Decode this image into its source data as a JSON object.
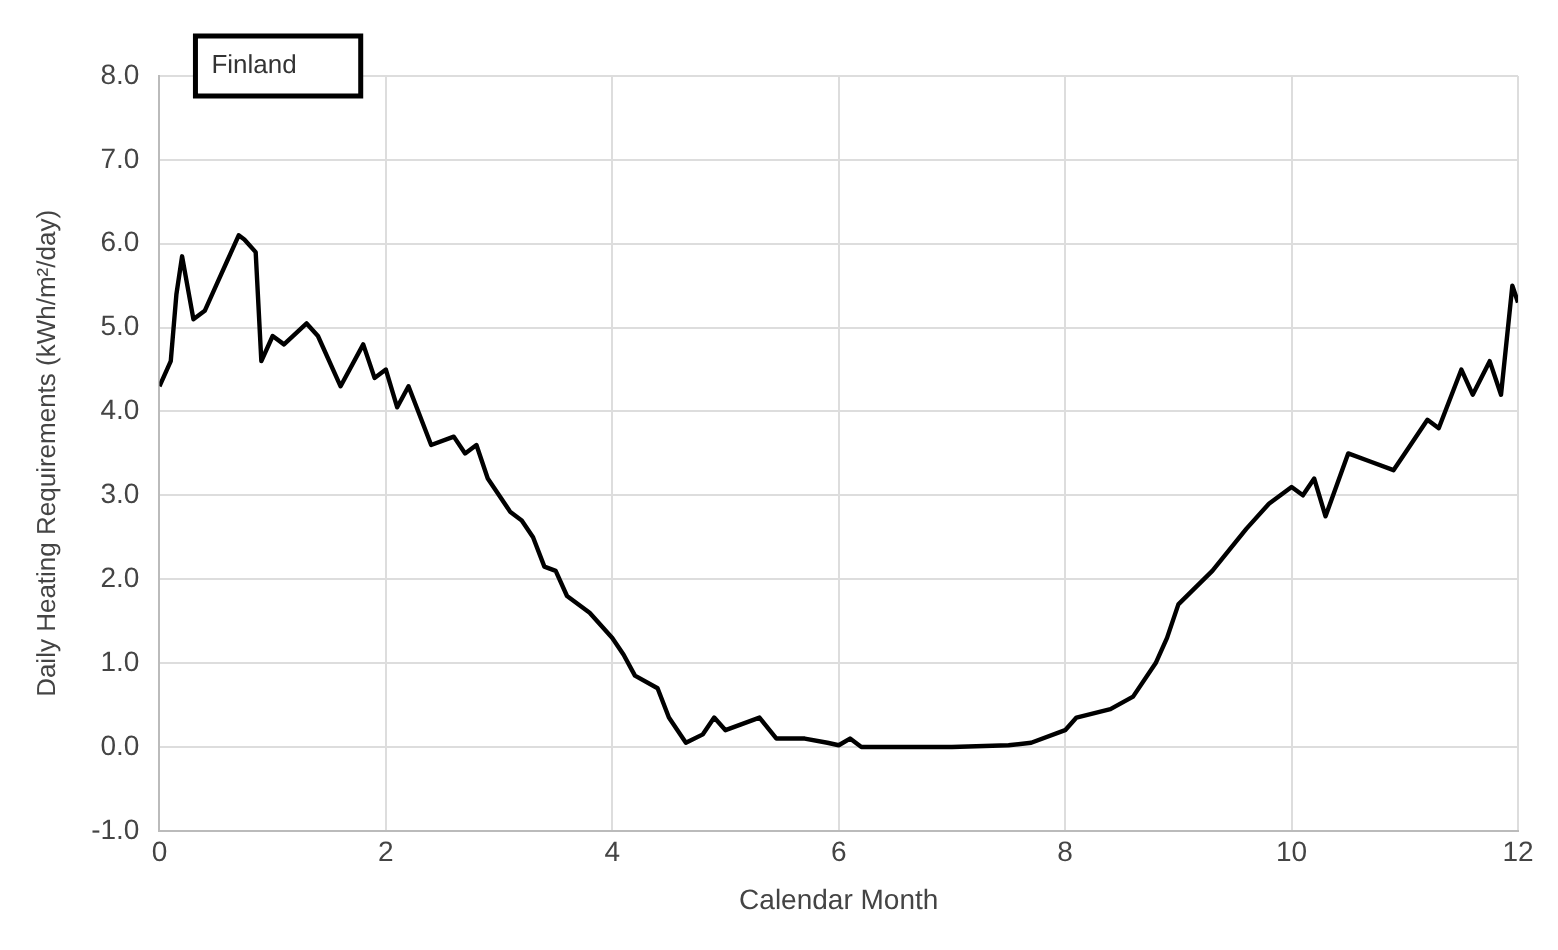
{
  "chart_data": {
    "type": "line",
    "xlabel": "Calendar Month",
    "ylabel": "Daily Heating Requirements (kWh/m²/day)",
    "annotations": [
      "Finland"
    ],
    "x": [
      0,
      0.1,
      0.15,
      0.2,
      0.3,
      0.4,
      0.5,
      0.6,
      0.7,
      0.75,
      0.85,
      0.9,
      1.0,
      1.1,
      1.3,
      1.4,
      1.6,
      1.8,
      1.9,
      2.0,
      2.1,
      2.2,
      2.4,
      2.6,
      2.7,
      2.8,
      2.9,
      3.0,
      3.1,
      3.2,
      3.3,
      3.4,
      3.5,
      3.6,
      3.8,
      4.0,
      4.1,
      4.2,
      4.4,
      4.5,
      4.65,
      4.8,
      4.9,
      5.0,
      5.3,
      5.45,
      5.7,
      5.9,
      6.0,
      6.1,
      6.2,
      6.5,
      7.0,
      7.5,
      7.7,
      8.0,
      8.1,
      8.4,
      8.6,
      8.8,
      8.9,
      9.0,
      9.3,
      9.6,
      9.8,
      10.0,
      10.1,
      10.2,
      10.3,
      10.5,
      10.7,
      10.9,
      11.0,
      11.2,
      11.3,
      11.5,
      11.6,
      11.75,
      11.85,
      11.95,
      12.0
    ],
    "series": [
      {
        "color": "#000000",
        "values": [
          4.3,
          4.6,
          5.4,
          5.85,
          5.1,
          5.2,
          5.5,
          5.8,
          6.1,
          6.05,
          5.9,
          4.6,
          4.9,
          4.8,
          5.05,
          4.9,
          4.3,
          4.8,
          4.4,
          4.5,
          4.05,
          4.3,
          3.6,
          3.7,
          3.5,
          3.6,
          3.2,
          3.0,
          2.8,
          2.7,
          2.5,
          2.15,
          2.1,
          1.8,
          1.6,
          1.3,
          1.1,
          0.85,
          0.7,
          0.35,
          0.05,
          0.15,
          0.35,
          0.2,
          0.35,
          0.1,
          0.1,
          0.05,
          0.02,
          0.1,
          0.0,
          0.0,
          0.0,
          0.02,
          0.05,
          0.2,
          0.35,
          0.45,
          0.6,
          1.0,
          1.3,
          1.7,
          2.1,
          2.6,
          2.9,
          3.1,
          3.0,
          3.2,
          2.75,
          3.5,
          3.4,
          3.3,
          3.5,
          3.9,
          3.8,
          4.5,
          4.2,
          4.6,
          4.2,
          5.5,
          5.3
        ]
      }
    ],
    "xlim": [
      0,
      12
    ],
    "xticks": [
      0,
      2,
      4,
      6,
      8,
      10,
      12
    ],
    "ylim": [
      -1,
      8
    ],
    "yticks": [
      {
        "value": -1,
        "label": "-1.0"
      },
      {
        "value": 0,
        "label": "0.0"
      },
      {
        "value": 1,
        "label": "1.0"
      },
      {
        "value": 2,
        "label": "2.0"
      },
      {
        "value": 3,
        "label": "3.0"
      },
      {
        "value": 4,
        "label": "4.0"
      },
      {
        "value": 5,
        "label": "5.0"
      },
      {
        "value": 6,
        "label": "6.0"
      },
      {
        "value": 7,
        "label": "7.0"
      },
      {
        "value": 8,
        "label": "8.0"
      }
    ],
    "grid": true,
    "legend": false,
    "marker": "none",
    "line_style": "solid"
  }
}
